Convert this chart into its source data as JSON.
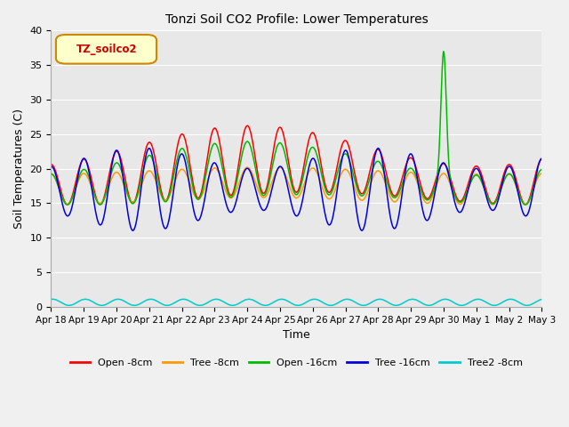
{
  "title": "Tonzi Soil CO2 Profile: Lower Temperatures",
  "xlabel": "Time",
  "ylabel": "Soil Temperatures (C)",
  "ylim": [
    0,
    40
  ],
  "background_color": "#e8e8e8",
  "fig_bg": "#f0f0f0",
  "grid_color": "#ffffff",
  "legend_label": "TZ_soilco2",
  "legend_bg": "#ffffcc",
  "legend_border": "#cc8800",
  "legend_text_color": "#cc0000",
  "x_tick_labels": [
    "Apr 18",
    "Apr 19",
    "Apr 20",
    "Apr 21",
    "Apr 22",
    "Apr 23",
    "Apr 24",
    "Apr 25",
    "Apr 26",
    "Apr 27",
    "Apr 28",
    "Apr 29",
    "Apr 30",
    "May 1",
    "May 2",
    "May 3"
  ],
  "series": [
    {
      "name": "Open -8cm",
      "color": "#ff0000"
    },
    {
      "name": "Tree -8cm",
      "color": "#ff9900"
    },
    {
      "name": "Open -16cm",
      "color": "#00bb00"
    },
    {
      "name": "Tree -16cm",
      "color": "#0000dd"
    },
    {
      "name": "Tree2 -8cm",
      "color": "#00cccc"
    }
  ],
  "n_points": 720,
  "spike_day": 12.0,
  "spike_value": 37.0
}
